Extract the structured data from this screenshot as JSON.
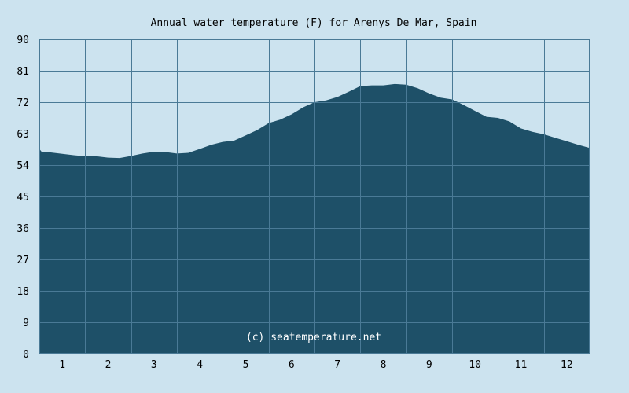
{
  "chart_data": {
    "type": "area",
    "title": "Annual water temperature (F) for Arenys De Mar, Spain",
    "watermark": "(c) seatemperature.net",
    "xlabel": "",
    "ylabel": "",
    "x_tick_labels": [
      "1",
      "2",
      "3",
      "4",
      "5",
      "6",
      "7",
      "8",
      "9",
      "10",
      "11",
      "12"
    ],
    "y_tick_labels": [
      "0",
      "9",
      "18",
      "27",
      "36",
      "45",
      "54",
      "63",
      "72",
      "81",
      "90"
    ],
    "y_ticks": [
      0,
      9,
      18,
      27,
      36,
      45,
      54,
      63,
      72,
      81,
      90
    ],
    "ylim": [
      0,
      90
    ],
    "xlim": [
      0.5,
      12.5
    ],
    "grid": true,
    "colors": {
      "background": "#cce3ef",
      "fill": "#1e5068",
      "grid": "#4a7a96"
    },
    "series": [
      {
        "x": [
          0.5,
          0.55,
          0.75,
          1.0,
          1.25,
          1.5,
          1.75,
          2.0,
          2.25,
          2.5,
          2.75,
          3.0,
          3.25,
          3.5,
          3.75,
          4.0,
          4.25,
          4.5,
          4.75,
          5.0,
          5.25,
          5.5,
          5.75,
          6.0,
          6.25,
          6.5,
          6.75,
          7.0,
          7.25,
          7.5,
          7.75,
          8.0,
          8.25,
          8.5,
          8.75,
          9.0,
          9.25,
          9.5,
          9.75,
          10.0,
          10.25,
          10.5,
          10.75,
          11.0,
          11.25,
          11.5,
          11.75,
          12.0,
          12.25,
          12.5
        ],
        "values": [
          58.6,
          57.8,
          57.6,
          57.2,
          56.8,
          56.5,
          56.5,
          56.1,
          56.0,
          56.6,
          57.3,
          57.8,
          57.7,
          57.3,
          57.5,
          58.6,
          59.8,
          60.6,
          61.0,
          62.5,
          64.0,
          66.0,
          67.0,
          68.5,
          70.5,
          72.0,
          72.5,
          73.5,
          75.0,
          76.6,
          76.8,
          76.8,
          77.2,
          77.0,
          76.0,
          74.5,
          73.3,
          72.8,
          71.2,
          69.5,
          67.8,
          67.5,
          66.5,
          64.5,
          63.5,
          62.8,
          61.8,
          60.8,
          59.8,
          58.9
        ]
      }
    ]
  }
}
